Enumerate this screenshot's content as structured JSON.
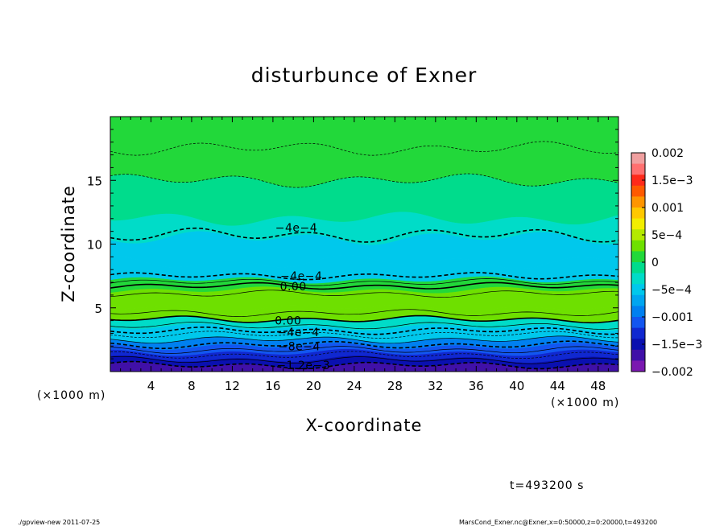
{
  "chart_data": {
    "type": "heatmap",
    "title": "disturbunce of Exner",
    "xlabel": "X-coordinate",
    "ylabel": "Z-coordinate",
    "x_unit_left": "(×1000 m)",
    "x_unit_right": "(×1000 m)",
    "xlim": [
      0,
      50
    ],
    "ylim": [
      0,
      20
    ],
    "x_ticks": [
      4,
      8,
      12,
      16,
      20,
      24,
      28,
      32,
      36,
      40,
      44,
      48
    ],
    "y_ticks": [
      5,
      10,
      15
    ],
    "colorbar": {
      "range": [
        -0.002,
        0.002
      ],
      "tick_labels": [
        "0.002",
        "1.5e−3",
        "0.001",
        "5e−4",
        "0",
        "−5e−4",
        "−0.001",
        "−1.5e−3",
        "−0.002"
      ],
      "colors": [
        "#f0a0a0",
        "#ff7070",
        "#ff2a1a",
        "#ff5a00",
        "#ff9500",
        "#ffc800",
        "#f2ee00",
        "#b4ea00",
        "#6ee000",
        "#22d83a",
        "#00dc8c",
        "#00dcc8",
        "#00c8ec",
        "#00a6f0",
        "#0080f0",
        "#1256f0",
        "#1028d0",
        "#0a10b0",
        "#4010a8",
        "#7a18b0"
      ]
    },
    "field_bands": [
      {
        "z": [
          0.0,
          0.5
        ],
        "value": -0.00175
      },
      {
        "z": [
          0.5,
          1.0
        ],
        "value": -0.0015
      },
      {
        "z": [
          1.0,
          1.5
        ],
        "value": -0.00125
      },
      {
        "z": [
          1.5,
          2.0
        ],
        "value": -0.001
      },
      {
        "z": [
          2.0,
          2.5
        ],
        "value": -0.0008
      },
      {
        "z": [
          2.5,
          3.0
        ],
        "value": -0.0006
      },
      {
        "z": [
          3.0,
          3.5
        ],
        "value": -0.00045
      },
      {
        "z": [
          3.5,
          4.1
        ],
        "value": -0.0003
      },
      {
        "z": [
          4.1,
          5.0
        ],
        "value": 0.00025
      },
      {
        "z": [
          5.0,
          6.4
        ],
        "value": 0.0004
      },
      {
        "z": [
          6.4,
          7.2
        ],
        "value": 0.0001
      },
      {
        "z": [
          7.2,
          8.6
        ],
        "value": -0.0005
      },
      {
        "z": [
          8.6,
          10.5
        ],
        "value": -0.00045
      },
      {
        "z": [
          10.5,
          12.0
        ],
        "value": -0.0003
      },
      {
        "z": [
          12.0,
          15.0
        ],
        "value": -0.0001
      },
      {
        "z": [
          15.0,
          20.0
        ],
        "value": 0.0001
      }
    ],
    "contour_labels": [
      {
        "text": "−4e−4",
        "x": 18.3,
        "z": 11.3
      },
      {
        "text": "−4e−4",
        "x": 18.8,
        "z": 7.5
      },
      {
        "text": "0.00",
        "x": 18.0,
        "z": 6.7
      },
      {
        "text": "0.00",
        "x": 17.5,
        "z": 4.0
      },
      {
        "text": "−4e−4",
        "x": 18.5,
        "z": 3.1
      },
      {
        "text": "−8e−4",
        "x": 18.6,
        "z": 2.0
      },
      {
        "text": "−1.2e−3",
        "x": 19.0,
        "z": 0.5
      }
    ],
    "contours": [
      {
        "z": 0.5,
        "dashed": true,
        "bold": true
      },
      {
        "z": 0.9,
        "dashed": false,
        "bold": false
      },
      {
        "z": 1.3,
        "dashed": true,
        "bold": false
      },
      {
        "z": 1.7,
        "dashed": false,
        "bold": false
      },
      {
        "z": 2.1,
        "dashed": true,
        "bold": true
      },
      {
        "z": 2.5,
        "dashed": false,
        "bold": false
      },
      {
        "z": 2.9,
        "dashed": true,
        "bold": false
      },
      {
        "z": 3.2,
        "dashed": true,
        "bold": true
      },
      {
        "z": 3.6,
        "dashed": false,
        "bold": false
      },
      {
        "z": 4.1,
        "dashed": false,
        "bold": true
      },
      {
        "z": 4.6,
        "dashed": false,
        "bold": false
      },
      {
        "z": 6.1,
        "dashed": false,
        "bold": false
      },
      {
        "z": 6.7,
        "dashed": false,
        "bold": true
      },
      {
        "z": 7.0,
        "dashed": false,
        "bold": false
      },
      {
        "z": 7.5,
        "dashed": true,
        "bold": true
      },
      {
        "z": 10.7,
        "dashed": true,
        "bold": true
      },
      {
        "z": 15.0,
        "dashed": true,
        "bold": false
      },
      {
        "z": 17.5,
        "dashed": true,
        "bold": false
      }
    ]
  },
  "time_label": "t=493200 s",
  "footer_left": "./gpview-new   2011-07-25",
  "footer_right": "MarsCond_Exner.nc@Exner,x=0:50000,z=0:20000,t=493200"
}
